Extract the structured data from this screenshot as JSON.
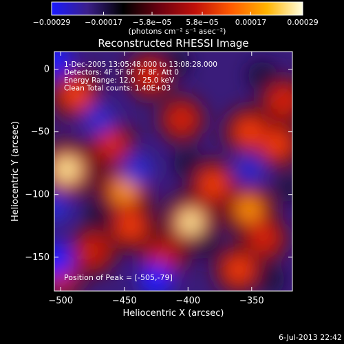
{
  "chart_data": {
    "type": "heatmap",
    "title": "Reconstructed RHESSI Image",
    "xlabel": "Heliocentric X (arcsec)",
    "ylabel": "Heliocentric Y (arcsec)",
    "xlim": [
      -505,
      -318
    ],
    "ylim": [
      -177,
      14
    ],
    "x_ticks": [
      -500,
      -450,
      -400,
      -350
    ],
    "x_tick_labels": [
      "−500",
      "−450",
      "−400",
      "−350"
    ],
    "y_ticks": [
      0,
      -50,
      -100,
      -150
    ],
    "y_tick_labels": [
      "0",
      "−50",
      "−100",
      "−150"
    ],
    "colorbar": {
      "range": [
        -0.00029,
        0.00029
      ],
      "ticks": [
        -0.00029,
        -0.00017,
        -5.8e-05,
        5.8e-05,
        0.00017,
        0.00029
      ],
      "tick_labels": [
        "−0.00029",
        "−0.00017",
        "−5.8e−05",
        "5.8e−05",
        "0.00017",
        "0.00029"
      ],
      "unit_label": "(photons cm⁻² s⁻¹ asec⁻²)",
      "colormap": [
        "#1a1aff",
        "#3b1f8a",
        "#000000",
        "#6b0010",
        "#c0100a",
        "#ff5a00",
        "#ffb400",
        "#ffffe0"
      ]
    },
    "annotations": [
      "1-Dec-2005 13:05:48.000 to 13:08:28.000",
      "Detectors: 4F 5F 6F 7F 8F, Att 0",
      "Energy Range: 12.0 - 25.0 keV",
      "Clean     Total counts: 1.40E+03"
    ],
    "peak_label": "Position of Peak = [-505,-79]",
    "peak_position": [
      -505,
      -79
    ],
    "hot_spots": [
      {
        "x": -495,
        "y": -80,
        "v": 1.0
      },
      {
        "x": -398,
        "y": -122,
        "v": 0.9
      },
      {
        "x": -450,
        "y": -97,
        "v": 0.8
      },
      {
        "x": -352,
        "y": -112,
        "v": 0.7
      },
      {
        "x": -488,
        "y": -20,
        "v": 0.6
      },
      {
        "x": -352,
        "y": -50,
        "v": 0.55
      },
      {
        "x": -330,
        "y": -60,
        "v": 0.5
      },
      {
        "x": -360,
        "y": -160,
        "v": 0.5
      },
      {
        "x": -475,
        "y": -145,
        "v": 0.45
      },
      {
        "x": -430,
        "y": -5,
        "v": 0.4
      },
      {
        "x": -420,
        "y": -150,
        "v": 0.45
      },
      {
        "x": -380,
        "y": -92,
        "v": 0.55
      },
      {
        "x": -325,
        "y": -25,
        "v": 0.4
      },
      {
        "x": -405,
        "y": -40,
        "v": 0.35
      },
      {
        "x": -340,
        "y": -135,
        "v": 0.35
      },
      {
        "x": -460,
        "y": -60,
        "v": 0.4
      },
      {
        "x": -500,
        "y": -165,
        "v": 0.35
      },
      {
        "x": -445,
        "y": -125,
        "v": 0.5
      }
    ],
    "cold_spots": [
      {
        "x": -505,
        "y": -152,
        "v": -1.0
      },
      {
        "x": -505,
        "y": 8,
        "v": -0.9
      },
      {
        "x": -505,
        "y": -110,
        "v": -0.8
      },
      {
        "x": -470,
        "y": -40,
        "v": -0.75
      },
      {
        "x": -440,
        "y": -80,
        "v": -0.8
      },
      {
        "x": -425,
        "y": -168,
        "v": -0.85
      },
      {
        "x": -400,
        "y": -75,
        "v": -0.6
      },
      {
        "x": -352,
        "y": -80,
        "v": -0.7
      },
      {
        "x": -342,
        "y": -5,
        "v": -0.6
      },
      {
        "x": -385,
        "y": -140,
        "v": -0.5
      },
      {
        "x": -335,
        "y": -168,
        "v": -0.6
      },
      {
        "x": -470,
        "y": -115,
        "v": -0.55
      },
      {
        "x": -410,
        "y": 5,
        "v": -0.55
      },
      {
        "x": -320,
        "y": -95,
        "v": -0.5
      }
    ]
  },
  "timestamp": "6-Jul-2013 22:42",
  "colors": {
    "background": "#000000",
    "text": "#ffffff"
  }
}
